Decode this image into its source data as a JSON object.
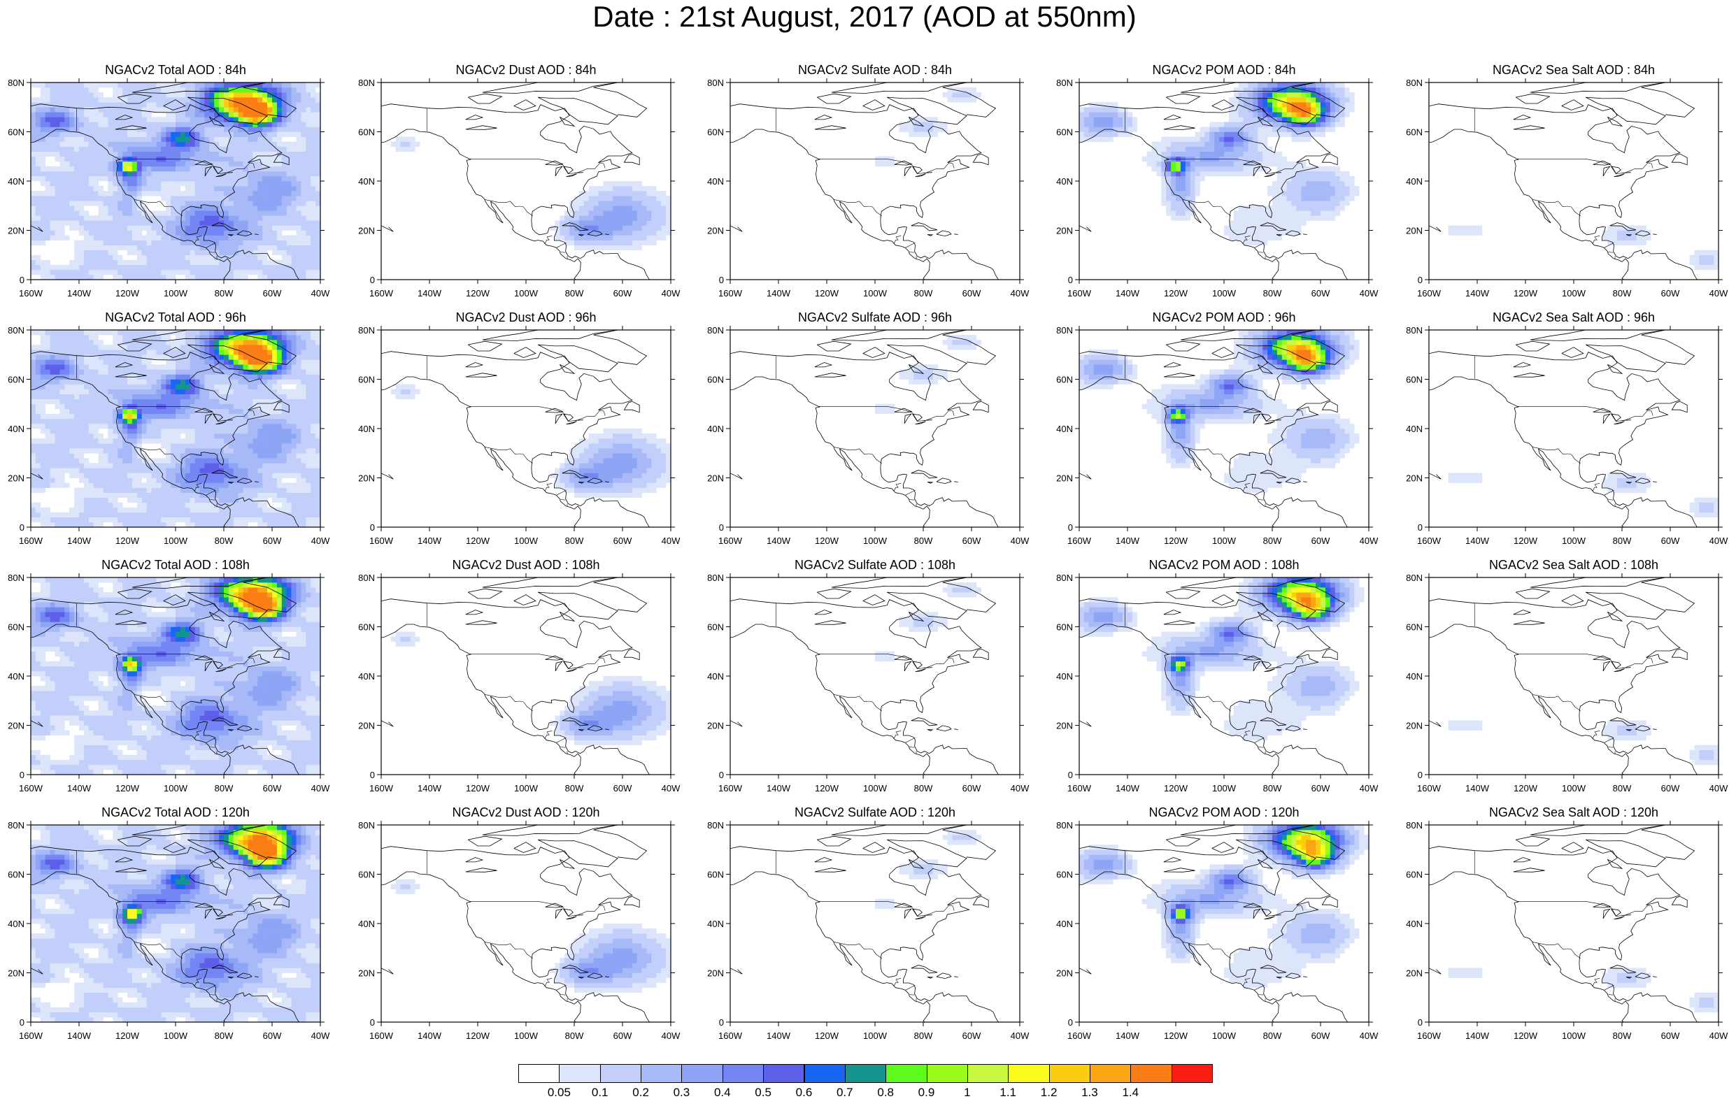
{
  "page": {
    "title": "Date : 21st August, 2017 (AOD at 550nm)"
  },
  "chart_data": [
    {
      "type": "heatmap",
      "title": "NGACv2 Total AOD : 84h",
      "species": "Total",
      "forecast_hour": 84
    },
    {
      "type": "heatmap",
      "title": "NGACv2 Dust AOD : 84h",
      "species": "Dust",
      "forecast_hour": 84
    },
    {
      "type": "heatmap",
      "title": "NGACv2 Sulfate AOD : 84h",
      "species": "Sulfate",
      "forecast_hour": 84
    },
    {
      "type": "heatmap",
      "title": "NGACv2 POM AOD : 84h",
      "species": "POM",
      "forecast_hour": 84
    },
    {
      "type": "heatmap",
      "title": "NGACv2 Sea Salt AOD : 84h",
      "species": "Sea Salt",
      "forecast_hour": 84
    },
    {
      "type": "heatmap",
      "title": "NGACv2 Total AOD : 96h",
      "species": "Total",
      "forecast_hour": 96
    },
    {
      "type": "heatmap",
      "title": "NGACv2 Dust AOD : 96h",
      "species": "Dust",
      "forecast_hour": 96
    },
    {
      "type": "heatmap",
      "title": "NGACv2 Sulfate AOD : 96h",
      "species": "Sulfate",
      "forecast_hour": 96
    },
    {
      "type": "heatmap",
      "title": "NGACv2 POM AOD : 96h",
      "species": "POM",
      "forecast_hour": 96
    },
    {
      "type": "heatmap",
      "title": "NGACv2 Sea Salt AOD : 96h",
      "species": "Sea Salt",
      "forecast_hour": 96
    },
    {
      "type": "heatmap",
      "title": "NGACv2 Total AOD : 108h",
      "species": "Total",
      "forecast_hour": 108
    },
    {
      "type": "heatmap",
      "title": "NGACv2 Dust AOD : 108h",
      "species": "Dust",
      "forecast_hour": 108
    },
    {
      "type": "heatmap",
      "title": "NGACv2 Sulfate AOD : 108h",
      "species": "Sulfate",
      "forecast_hour": 108
    },
    {
      "type": "heatmap",
      "title": "NGACv2 POM AOD : 108h",
      "species": "POM",
      "forecast_hour": 108
    },
    {
      "type": "heatmap",
      "title": "NGACv2 Sea Salt AOD : 108h",
      "species": "Sea Salt",
      "forecast_hour": 108
    },
    {
      "type": "heatmap",
      "title": "NGACv2 Total AOD : 120h",
      "species": "Total",
      "forecast_hour": 120
    },
    {
      "type": "heatmap",
      "title": "NGACv2 Dust AOD : 120h",
      "species": "Dust",
      "forecast_hour": 120
    },
    {
      "type": "heatmap",
      "title": "NGACv2 Sulfate AOD : 120h",
      "species": "Sulfate",
      "forecast_hour": 120
    },
    {
      "type": "heatmap",
      "title": "NGACv2 POM AOD : 120h",
      "species": "POM",
      "forecast_hour": 120
    },
    {
      "type": "heatmap",
      "title": "NGACv2 Sea Salt  AOD : 120h",
      "species": "Sea Salt",
      "forecast_hour": 120
    }
  ],
  "axes": {
    "x_ticks": [
      "160W",
      "140W",
      "120W",
      "100W",
      "80W",
      "60W",
      "40W"
    ],
    "x_values": [
      -160,
      -140,
      -120,
      -100,
      -80,
      -60,
      -40
    ],
    "y_ticks": [
      "0",
      "20N",
      "40N",
      "60N",
      "80N"
    ],
    "y_values": [
      0,
      20,
      40,
      60,
      80
    ],
    "xlim": [
      -160,
      -40
    ],
    "ylim": [
      0,
      80
    ]
  },
  "colorbar": {
    "labels": [
      "0.05",
      "0.1",
      "0.2",
      "0.3",
      "0.4",
      "0.5",
      "0.6",
      "0.7",
      "0.8",
      "0.9",
      "1",
      "1.1",
      "1.2",
      "1.3",
      "1.4"
    ],
    "colors": [
      "#ffffff",
      "#dde5fb",
      "#c2cffa",
      "#a8b9f7",
      "#8ea5f6",
      "#7485f4",
      "#5d5fe9",
      "#1a66f4",
      "#15948f",
      "#5dfb1b",
      "#9bfb1c",
      "#c8f93e",
      "#fbfb1d",
      "#fbcd10",
      "#fba514",
      "#fb7d15",
      "#fb1c13"
    ]
  }
}
